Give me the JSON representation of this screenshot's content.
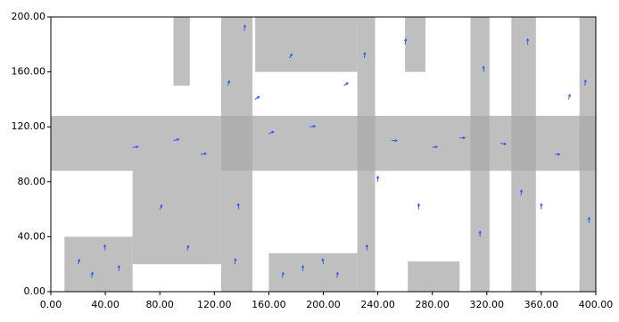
{
  "chart_data": {
    "type": "quiver",
    "xlim": [
      0,
      400
    ],
    "ylim": [
      0,
      200
    ],
    "xticks": [
      {
        "value": 0,
        "label": "0.00"
      },
      {
        "value": 40,
        "label": "40.00"
      },
      {
        "value": 80,
        "label": "80.00"
      },
      {
        "value": 120,
        "label": "120.00"
      },
      {
        "value": 160,
        "label": "160.00"
      },
      {
        "value": 200,
        "label": "200.00"
      },
      {
        "value": 240,
        "label": "240.00"
      },
      {
        "value": 280,
        "label": "280.00"
      },
      {
        "value": 320,
        "label": "320.00"
      },
      {
        "value": 360,
        "label": "360.00"
      },
      {
        "value": 400,
        "label": "400.00"
      }
    ],
    "yticks": [
      {
        "value": 0,
        "label": "0.00"
      },
      {
        "value": 40,
        "label": "40.00"
      },
      {
        "value": 80,
        "label": "80.00"
      },
      {
        "value": 120,
        "label": "120.00"
      },
      {
        "value": 160,
        "label": "160.00"
      },
      {
        "value": 200,
        "label": "200.00"
      }
    ],
    "region_color": "#a9a9a9",
    "regions": {
      "x0": [
        125,
        225,
        308,
        338,
        388,
        0,
        10,
        160,
        150,
        262,
        60,
        90,
        260
      ],
      "x1": [
        148,
        238,
        322,
        356,
        400,
        400,
        60,
        225,
        225,
        300,
        125,
        102,
        275
      ],
      "y0": [
        0,
        0,
        0,
        0,
        0,
        88,
        0,
        0,
        160,
        0,
        20,
        150,
        160
      ],
      "y1": [
        200,
        200,
        200,
        200,
        200,
        128,
        40,
        28,
        200,
        22,
        88,
        200,
        200
      ]
    },
    "arrow_color": "#2c5bff",
    "arrows": {
      "x": [
        135,
        138,
        130,
        142,
        232,
        230,
        315,
        318,
        345,
        350,
        395,
        392,
        20,
        30,
        40,
        50,
        170,
        185,
        200,
        210,
        60,
        90,
        110,
        160,
        190,
        250,
        280,
        300,
        330,
        370,
        100,
        80,
        260,
        270,
        150,
        175,
        215,
        240,
        360,
        380
      ],
      "y": [
        20,
        60,
        150,
        190,
        30,
        170,
        40,
        160,
        70,
        180,
        50,
        150,
        20,
        10,
        30,
        15,
        10,
        15,
        20,
        10,
        105,
        110,
        100,
        115,
        120,
        110,
        105,
        112,
        108,
        100,
        30,
        60,
        180,
        60,
        140,
        170,
        150,
        80,
        60,
        140
      ],
      "u": [
        0.5,
        -0.5,
        1,
        0.5,
        0,
        0.5,
        0,
        -0.5,
        0.5,
        0,
        0,
        0.5,
        1,
        0.5,
        -0.5,
        0,
        0.5,
        0,
        -0.5,
        0.5,
        4,
        4,
        4,
        3.5,
        4,
        4,
        3.5,
        4,
        4,
        3.5,
        1,
        1.5,
        0.5,
        0,
        3,
        2,
        3,
        0,
        0,
        1
      ],
      "v": [
        4,
        4,
        3.5,
        4,
        4,
        4,
        4,
        4,
        4,
        4,
        4,
        4,
        3.5,
        4,
        4,
        4,
        4,
        4,
        4,
        4,
        0.5,
        1,
        0.5,
        1.5,
        0.5,
        0,
        0.5,
        0,
        -0.5,
        0,
        3.5,
        3,
        4,
        4,
        2,
        3,
        2,
        4,
        4,
        3.5
      ]
    }
  }
}
